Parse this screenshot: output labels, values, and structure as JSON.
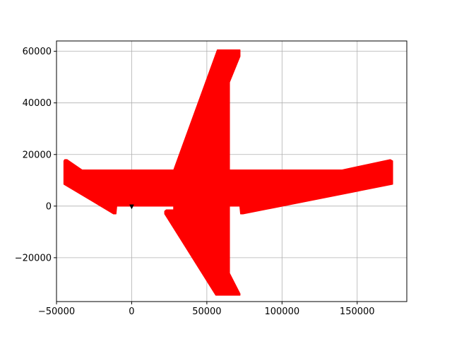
{
  "chart_data": {
    "type": "area",
    "title": "",
    "xlabel": "",
    "ylabel": "",
    "xlim": [
      -50000,
      183000
    ],
    "ylim": [
      -37000,
      64000
    ],
    "grid": true,
    "x_ticks": [
      -50000,
      0,
      50000,
      100000,
      150000
    ],
    "x_tick_labels": [
      "−50000",
      "0",
      "50000",
      "100000",
      "150000"
    ],
    "y_ticks": [
      -20000,
      0,
      20000,
      40000,
      60000
    ],
    "y_tick_labels": [
      "−20000",
      "0",
      "20000",
      "40000",
      "60000"
    ],
    "fill_color": "#ff0000",
    "marker_color": "#000000",
    "shapes": [
      {
        "name": "fuselage-and-tails",
        "points": [
          [
            -45000,
            17500
          ],
          [
            -44500,
            18000
          ],
          [
            -43000,
            18000
          ],
          [
            -33000,
            14000
          ],
          [
            28000,
            14000
          ],
          [
            28000,
            0
          ],
          [
            -10000,
            0
          ],
          [
            -10500,
            -3000
          ],
          [
            -12000,
            -3000
          ],
          [
            -45000,
            8500
          ]
        ]
      },
      {
        "name": "fuselage-mid",
        "points": [
          [
            28000,
            14000
          ],
          [
            67000,
            14000
          ],
          [
            67000,
            0
          ],
          [
            28000,
            0
          ]
        ]
      },
      {
        "name": "right-section",
        "points": [
          [
            63000,
            14000
          ],
          [
            140000,
            14000
          ],
          [
            172000,
            18000
          ],
          [
            173500,
            17500
          ],
          [
            173500,
            8500
          ],
          [
            74000,
            -3000
          ],
          [
            72500,
            -3000
          ],
          [
            72000,
            0
          ],
          [
            63000,
            0
          ]
        ]
      },
      {
        "name": "upper-wing",
        "points": [
          [
            28000,
            14000
          ],
          [
            57000,
            60500
          ],
          [
            72000,
            60500
          ],
          [
            72000,
            58000
          ],
          [
            65000,
            48000
          ],
          [
            65000,
            14000
          ]
        ]
      },
      {
        "name": "lower-wing",
        "points": [
          [
            22000,
            -2000
          ],
          [
            23000,
            -1500
          ],
          [
            28000,
            -1500
          ],
          [
            28000,
            0
          ],
          [
            65000,
            0
          ],
          [
            65000,
            -26000
          ],
          [
            72000,
            -34000
          ],
          [
            72000,
            -34500
          ],
          [
            56000,
            -34500
          ],
          [
            22000,
            -3000
          ]
        ]
      }
    ],
    "markers": [
      {
        "name": "origin-marker",
        "x": 0,
        "y": 0,
        "symbol": "v"
      }
    ]
  }
}
